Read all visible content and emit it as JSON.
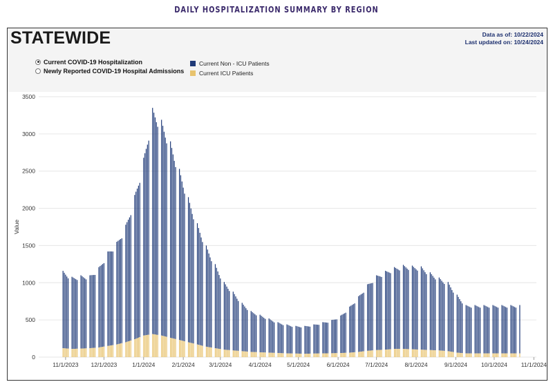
{
  "page_title": "DAILY HOSPITALIZATION SUMMARY BY REGION",
  "panel": {
    "title": "STATEWIDE",
    "data_as_of": "Data as of: 10/22/2024",
    "last_updated": "Last updated on: 10/24/2024"
  },
  "radio_options": [
    {
      "label": "Current COVID-19 Hospitalization",
      "selected": true
    },
    {
      "label": "Newly Reported COVID-19 Hospital Admissions",
      "selected": false
    }
  ],
  "colors": {
    "non_icu": "#1f3a78",
    "icu": "#e8c36e",
    "grid": "#e6e6e6"
  },
  "chart_data": {
    "type": "bar",
    "stacked": true,
    "ylabel": "Value",
    "ylim": [
      0,
      3500
    ],
    "yticks": [
      0,
      500,
      1000,
      1500,
      2000,
      2500,
      3000,
      3500
    ],
    "x_start": "10/30/2023",
    "x_end": "10/21/2024",
    "xrange": [
      "10/11/2023",
      "11/3/2024"
    ],
    "xtick_labels": [
      "11/1/2023",
      "12/1/2023",
      "1/1/2024",
      "2/1/2024",
      "3/1/2024",
      "4/1/2024",
      "5/1/2024",
      "6/1/2024",
      "7/1/2024",
      "8/1/2024",
      "9/1/2024",
      "10/1/2024",
      "11/1/2024"
    ],
    "legend": [
      "Current Non - ICU Patients",
      "Current ICU Patients"
    ],
    "legend_position": "top",
    "weekly_totals": [
      1160,
      1080,
      1100,
      1100,
      1210,
      1420,
      1550,
      1780,
      2180,
      2680,
      3350,
      3190,
      2900,
      2530,
      2150,
      1800,
      1500,
      1250,
      1010,
      880,
      730,
      620,
      570,
      520,
      470,
      440,
      420,
      420,
      440,
      470,
      500,
      560,
      680,
      820,
      980,
      1100,
      1160,
      1210,
      1240,
      1230,
      1220,
      1140,
      1070,
      1010,
      840,
      700
    ],
    "weekly_icu": [
      120,
      110,
      115,
      120,
      130,
      150,
      170,
      200,
      240,
      290,
      310,
      290,
      260,
      230,
      200,
      170,
      140,
      120,
      100,
      90,
      80,
      70,
      65,
      60,
      55,
      50,
      48,
      45,
      48,
      50,
      52,
      55,
      60,
      70,
      85,
      95,
      100,
      110,
      110,
      105,
      100,
      95,
      90,
      80,
      60,
      50
    ]
  }
}
